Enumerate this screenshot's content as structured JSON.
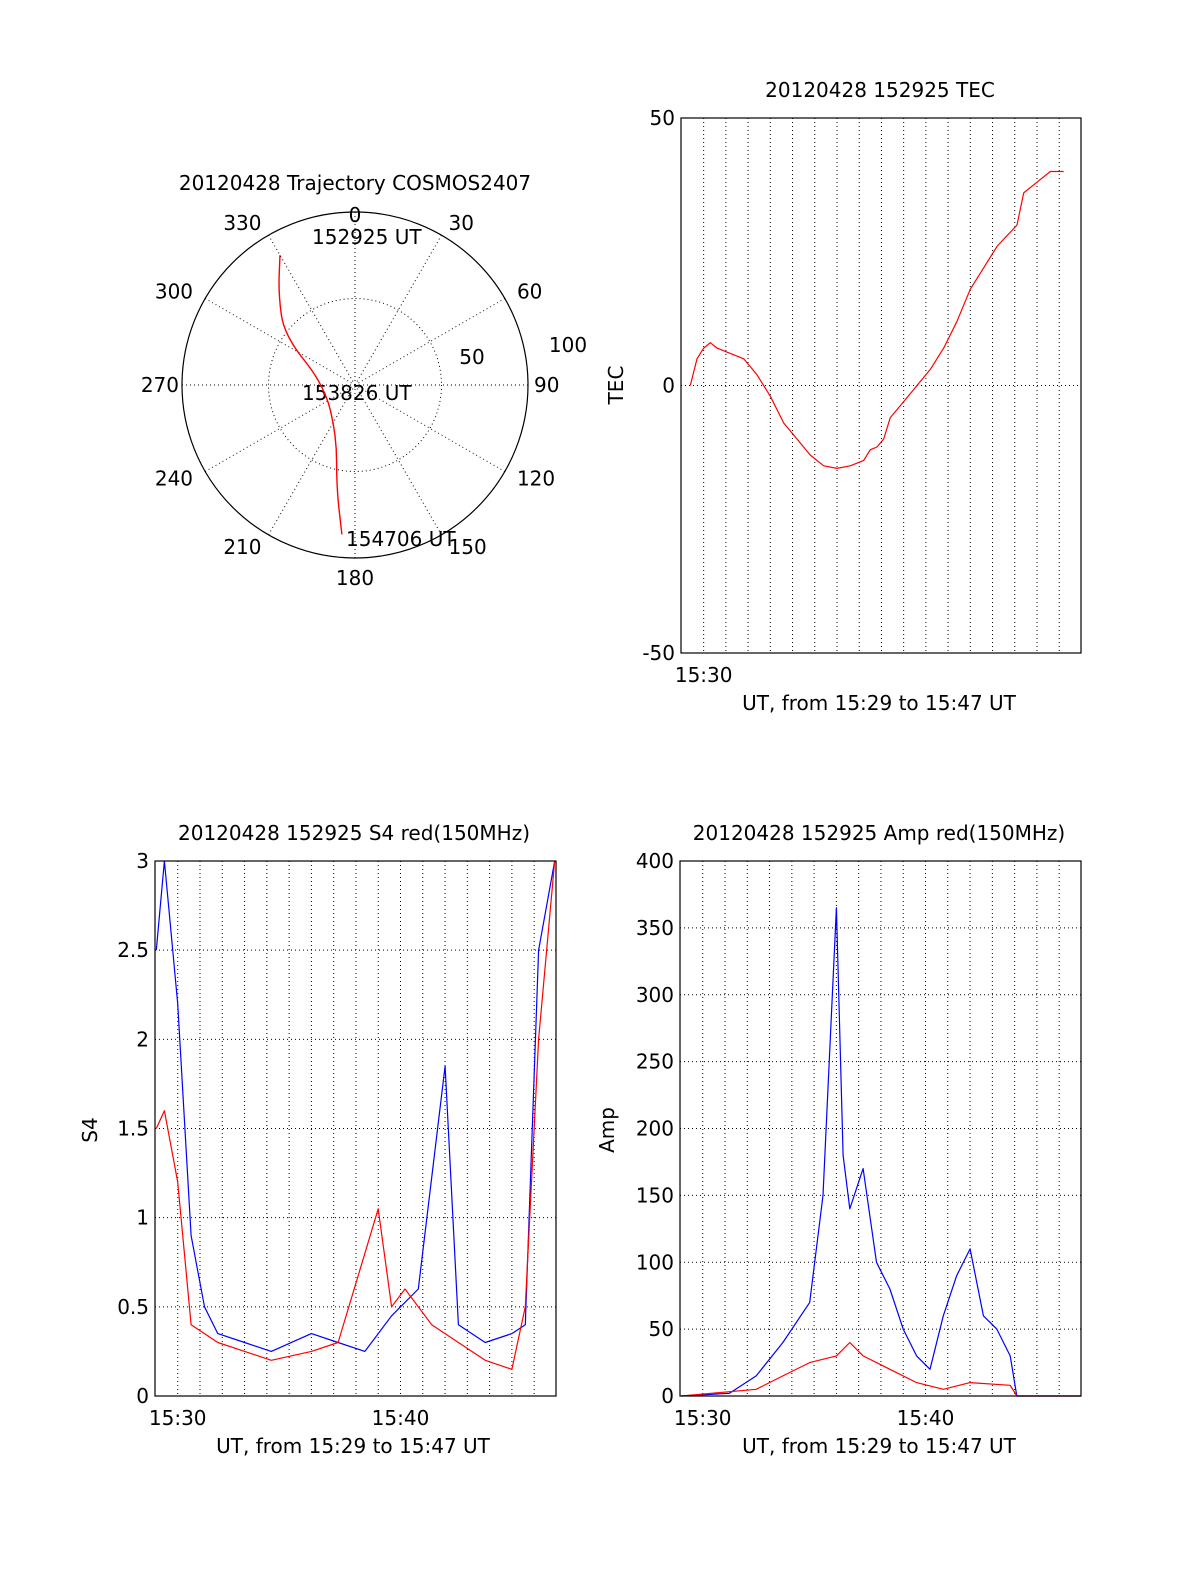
{
  "chart_data": [
    {
      "type": "polar",
      "title": "20120428 Trajectory COSMOS2407",
      "azimuth_labels": [
        "0",
        "30",
        "60",
        "90",
        "120",
        "150",
        "180",
        "210",
        "240",
        "270",
        "300",
        "330"
      ],
      "radial_labels": [
        "50",
        "100"
      ],
      "annotations": [
        "152925 UT",
        "153826 UT",
        "154706 UT"
      ],
      "trajectory": {
        "color": "#ff0000",
        "points": [
          {
            "az": 330,
            "elev": 12
          },
          {
            "az": 320,
            "elev": 28
          },
          {
            "az": 305,
            "elev": 45
          },
          {
            "az": 270,
            "elev": 74
          },
          {
            "az": 200,
            "elev": 62
          },
          {
            "az": 190,
            "elev": 35
          },
          {
            "az": 185,
            "elev": 12
          }
        ]
      },
      "grid": true
    },
    {
      "type": "line",
      "title": "20120428 152925 TEC",
      "xlabel": "UT, from 15:29 to 15:47 UT",
      "ylabel": "TEC",
      "xlim": [
        15.483,
        15.783
      ],
      "ylim": [
        -50,
        50
      ],
      "x_tick_labels": [
        "15:30"
      ],
      "y_tick_labels": [
        "50",
        "0",
        "-50"
      ],
      "grid": true,
      "series": [
        {
          "color": "#ff0000",
          "points": [
            [
              15.49,
              0
            ],
            [
              15.495,
              5
            ],
            [
              15.5,
              7
            ],
            [
              15.505,
              8
            ],
            [
              15.51,
              7
            ],
            [
              15.52,
              6
            ],
            [
              15.53,
              5
            ],
            [
              15.54,
              2
            ],
            [
              15.55,
              -2
            ],
            [
              15.56,
              -7
            ],
            [
              15.57,
              -10
            ],
            [
              15.58,
              -13
            ],
            [
              15.59,
              -15
            ],
            [
              15.6,
              -15.5
            ],
            [
              15.61,
              -15
            ],
            [
              15.62,
              -14
            ],
            [
              15.625,
              -12
            ],
            [
              15.63,
              -11.5
            ],
            [
              15.635,
              -10
            ],
            [
              15.64,
              -6
            ],
            [
              15.65,
              -3
            ],
            [
              15.66,
              0
            ],
            [
              15.67,
              3
            ],
            [
              15.68,
              7
            ],
            [
              15.69,
              12
            ],
            [
              15.7,
              18
            ],
            [
              15.71,
              22
            ],
            [
              15.72,
              26
            ],
            [
              15.735,
              30
            ],
            [
              15.74,
              36
            ],
            [
              15.75,
              38
            ],
            [
              15.76,
              40
            ],
            [
              15.77,
              40
            ]
          ]
        }
      ]
    },
    {
      "type": "line",
      "title": "20120428 152925 S4 red(150MHz)",
      "xlabel": "UT, from 15:29 to 15:47 UT",
      "ylabel": "S4",
      "xlim": [
        15.483,
        15.783
      ],
      "ylim": [
        0,
        3
      ],
      "x_tick_labels": [
        "15:30",
        "15:40"
      ],
      "y_tick_labels": [
        "0",
        "0.5",
        "1",
        "1.5",
        "2",
        "2.5",
        "3"
      ],
      "grid": true,
      "series": [
        {
          "color": "#0000ff",
          "points": [
            [
              15.484,
              2.5
            ],
            [
              15.49,
              3
            ],
            [
              15.5,
              2.2
            ],
            [
              15.51,
              0.9
            ],
            [
              15.52,
              0.5
            ],
            [
              15.53,
              0.35
            ],
            [
              15.55,
              0.3
            ],
            [
              15.57,
              0.25
            ],
            [
              15.6,
              0.35
            ],
            [
              15.62,
              0.3
            ],
            [
              15.64,
              0.25
            ],
            [
              15.66,
              0.45
            ],
            [
              15.68,
              0.6
            ],
            [
              15.7,
              1.85
            ],
            [
              15.71,
              0.4
            ],
            [
              15.73,
              0.3
            ],
            [
              15.75,
              0.35
            ],
            [
              15.76,
              0.4
            ],
            [
              15.77,
              2.5
            ],
            [
              15.782,
              3
            ]
          ]
        },
        {
          "color": "#ff0000",
          "points": [
            [
              15.484,
              1.5
            ],
            [
              15.49,
              1.6
            ],
            [
              15.5,
              1.2
            ],
            [
              15.51,
              0.4
            ],
            [
              15.53,
              0.3
            ],
            [
              15.55,
              0.25
            ],
            [
              15.57,
              0.2
            ],
            [
              15.6,
              0.25
            ],
            [
              15.62,
              0.3
            ],
            [
              15.64,
              0.8
            ],
            [
              15.65,
              1.05
            ],
            [
              15.66,
              0.5
            ],
            [
              15.67,
              0.6
            ],
            [
              15.69,
              0.4
            ],
            [
              15.71,
              0.3
            ],
            [
              15.73,
              0.2
            ],
            [
              15.75,
              0.15
            ],
            [
              15.76,
              0.5
            ],
            [
              15.77,
              2
            ],
            [
              15.782,
              3
            ]
          ]
        }
      ]
    },
    {
      "type": "line",
      "title": "20120428 152925 Amp red(150MHz)",
      "xlabel": "UT, from 15:29 to 15:47 UT",
      "ylabel": "Amp",
      "xlim": [
        15.483,
        15.783
      ],
      "ylim": [
        0,
        400
      ],
      "x_tick_labels": [
        "15:30",
        "15:40"
      ],
      "y_tick_labels": [
        "0",
        "50",
        "100",
        "150",
        "200",
        "250",
        "300",
        "350",
        "400"
      ],
      "grid": true,
      "series": [
        {
          "color": "#0000ff",
          "points": [
            [
              15.484,
              0
            ],
            [
              15.52,
              2
            ],
            [
              15.54,
              15
            ],
            [
              15.56,
              40
            ],
            [
              15.58,
              70
            ],
            [
              15.59,
              150
            ],
            [
              15.6,
              365
            ],
            [
              15.605,
              180
            ],
            [
              15.61,
              140
            ],
            [
              15.62,
              170
            ],
            [
              15.63,
              100
            ],
            [
              15.64,
              80
            ],
            [
              15.65,
              50
            ],
            [
              15.66,
              30
            ],
            [
              15.67,
              20
            ],
            [
              15.68,
              60
            ],
            [
              15.69,
              90
            ],
            [
              15.7,
              110
            ],
            [
              15.71,
              60
            ],
            [
              15.72,
              50
            ],
            [
              15.73,
              30
            ],
            [
              15.735,
              0
            ],
            [
              15.783,
              0
            ]
          ]
        },
        {
          "color": "#ff0000",
          "points": [
            [
              15.484,
              0
            ],
            [
              15.54,
              5
            ],
            [
              15.56,
              15
            ],
            [
              15.58,
              25
            ],
            [
              15.6,
              30
            ],
            [
              15.61,
              40
            ],
            [
              15.62,
              30
            ],
            [
              15.64,
              20
            ],
            [
              15.66,
              10
            ],
            [
              15.68,
              5
            ],
            [
              15.7,
              10
            ],
            [
              15.73,
              8
            ],
            [
              15.735,
              0
            ],
            [
              15.783,
              0
            ]
          ]
        }
      ]
    }
  ]
}
